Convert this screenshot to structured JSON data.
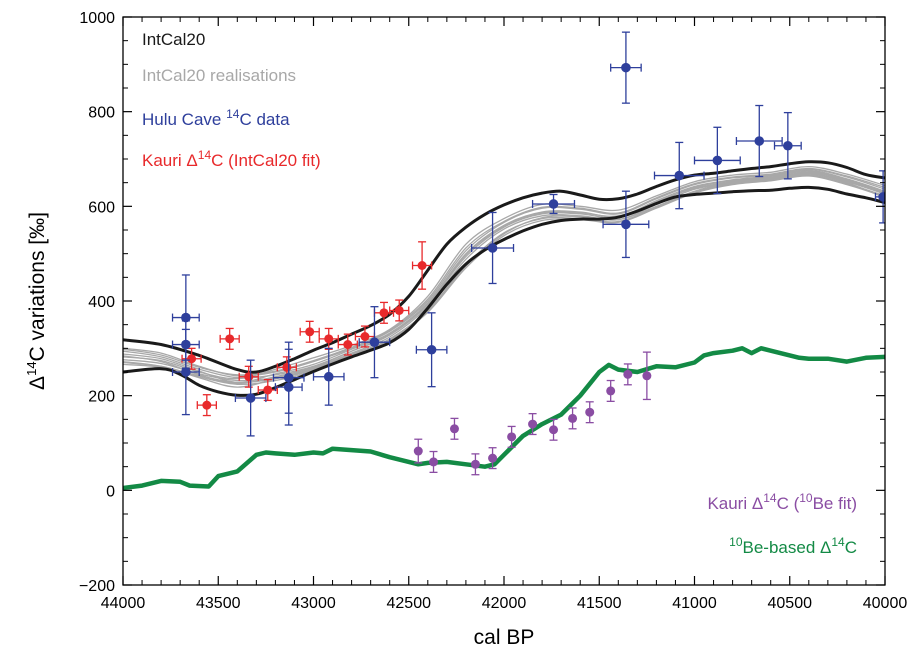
{
  "chart_data": {
    "type": "scatter",
    "x_axis": {
      "label": "cal BP",
      "range": [
        44000,
        40000
      ],
      "reversed": true,
      "ticks": [
        44000,
        43500,
        43000,
        42500,
        42000,
        41500,
        41000,
        40500,
        40000
      ],
      "tick_labels": [
        "44000",
        "43500",
        "43000",
        "42500",
        "42000",
        "41500",
        "41000",
        "40500",
        "40000"
      ]
    },
    "y_axis": {
      "label_prefix": "Δ",
      "label_sup": "14",
      "label_rest": "C variations [‰]",
      "range": [
        -200,
        1000
      ],
      "ticks": [
        -200,
        0,
        200,
        400,
        600,
        800,
        1000
      ],
      "tick_labels": [
        "−200",
        "0",
        "200",
        "400",
        "600",
        "800",
        "1000"
      ]
    },
    "grid": false,
    "legend_top": [
      {
        "key": "intcal20",
        "parts": [
          {
            "t": "IntCal20",
            "sup": false
          }
        ],
        "color": "#1a1a1a"
      },
      {
        "key": "realisations",
        "parts": [
          {
            "t": "IntCal20 realisations",
            "sup": false
          }
        ],
        "color": "#a8a8a8"
      },
      {
        "key": "hulu",
        "parts": [
          {
            "t": "Hulu Cave ",
            "sup": false
          },
          {
            "t": "14",
            "sup": true
          },
          {
            "t": "C data",
            "sup": false
          }
        ],
        "color": "#2e3f9c"
      },
      {
        "key": "kauri_intcal",
        "parts": [
          {
            "t": "Kauri Δ",
            "sup": false
          },
          {
            "t": "14",
            "sup": true
          },
          {
            "t": "C (IntCal20 fit)",
            "sup": false
          }
        ],
        "color": "#e8292b"
      }
    ],
    "legend_bottom": [
      {
        "key": "kauri_be",
        "parts": [
          {
            "t": "Kauri Δ",
            "sup": false
          },
          {
            "t": "14",
            "sup": true
          },
          {
            "t": "C (",
            "sup": false
          },
          {
            "t": "10",
            "sup": true
          },
          {
            "t": "Be fit)",
            "sup": false
          }
        ],
        "color": "#8a4da3"
      },
      {
        "key": "be_based",
        "parts": [
          {
            "t": "10",
            "sup": true
          },
          {
            "t": "Be-based Δ",
            "sup": false
          },
          {
            "t": "14",
            "sup": true
          },
          {
            "t": "C",
            "sup": false
          }
        ],
        "color": "#138a45"
      }
    ],
    "intcal20": {
      "color": "#1a1a1a",
      "upper": [
        [
          44000,
          318
        ],
        [
          43800,
          308
        ],
        [
          43600,
          285
        ],
        [
          43400,
          255
        ],
        [
          43300,
          250
        ],
        [
          43200,
          262
        ],
        [
          43100,
          278
        ],
        [
          43000,
          296
        ],
        [
          42900,
          312
        ],
        [
          42800,
          330
        ],
        [
          42700,
          348
        ],
        [
          42600,
          372
        ],
        [
          42500,
          410
        ],
        [
          42400,
          465
        ],
        [
          42300,
          520
        ],
        [
          42200,
          556
        ],
        [
          42100,
          583
        ],
        [
          42000,
          603
        ],
        [
          41900,
          618
        ],
        [
          41800,
          628
        ],
        [
          41700,
          632
        ],
        [
          41600,
          624
        ],
        [
          41500,
          615
        ],
        [
          41400,
          616
        ],
        [
          41300,
          626
        ],
        [
          41200,
          642
        ],
        [
          41100,
          656
        ],
        [
          41000,
          666
        ],
        [
          40900,
          670
        ],
        [
          40800,
          675
        ],
        [
          40700,
          680
        ],
        [
          40600,
          684
        ],
        [
          40500,
          690
        ],
        [
          40400,
          694
        ],
        [
          40300,
          692
        ],
        [
          40200,
          682
        ],
        [
          40100,
          667
        ],
        [
          40000,
          660
        ]
      ],
      "lower": [
        [
          44000,
          250
        ],
        [
          43800,
          257
        ],
        [
          43700,
          245
        ],
        [
          43600,
          222
        ],
        [
          43500,
          208
        ],
        [
          43400,
          201
        ],
        [
          43300,
          203
        ],
        [
          43200,
          217
        ],
        [
          43100,
          234
        ],
        [
          43000,
          251
        ],
        [
          42900,
          267
        ],
        [
          42800,
          282
        ],
        [
          42700,
          296
        ],
        [
          42600,
          312
        ],
        [
          42500,
          340
        ],
        [
          42400,
          385
        ],
        [
          42300,
          435
        ],
        [
          42200,
          478
        ],
        [
          42100,
          508
        ],
        [
          42000,
          530
        ],
        [
          41900,
          548
        ],
        [
          41800,
          562
        ],
        [
          41700,
          570
        ],
        [
          41600,
          573
        ],
        [
          41500,
          573
        ],
        [
          41400,
          577
        ],
        [
          41300,
          590
        ],
        [
          41200,
          606
        ],
        [
          41100,
          620
        ],
        [
          41000,
          625
        ],
        [
          40900,
          628
        ],
        [
          40800,
          631
        ],
        [
          40700,
          633
        ],
        [
          40600,
          634
        ],
        [
          40500,
          638
        ],
        [
          40400,
          640
        ],
        [
          40300,
          636
        ],
        [
          40200,
          626
        ],
        [
          40100,
          618
        ],
        [
          40000,
          608
        ]
      ]
    },
    "realisations": {
      "color": "#a8a8a8",
      "x": [
        44000,
        43800,
        43600,
        43400,
        43200,
        43000,
        42800,
        42600,
        42400,
        42200,
        42000,
        41800,
        41600,
        41400,
        41200,
        41000,
        40800,
        40600,
        40400,
        40200,
        40000
      ],
      "series": [
        [
          300,
          290,
          262,
          242,
          250,
          272,
          300,
          338,
          404,
          512,
          568,
          598,
          596,
          586,
          618,
          648,
          662,
          668,
          680,
          664,
          640
        ],
        [
          288,
          278,
          252,
          228,
          246,
          266,
          298,
          332,
          396,
          500,
          560,
          588,
          588,
          578,
          612,
          642,
          656,
          664,
          676,
          658,
          632
        ],
        [
          276,
          268,
          246,
          232,
          238,
          258,
          290,
          324,
          388,
          488,
          552,
          580,
          580,
          572,
          604,
          636,
          650,
          660,
          670,
          652,
          626
        ],
        [
          266,
          260,
          240,
          224,
          232,
          252,
          286,
          320,
          380,
          476,
          544,
          574,
          574,
          568,
          598,
          630,
          648,
          656,
          666,
          648,
          622
        ],
        [
          282,
          274,
          250,
          236,
          256,
          280,
          306,
          340,
          410,
          520,
          574,
          604,
          600,
          592,
          622,
          652,
          666,
          672,
          684,
          668,
          644
        ],
        [
          294,
          282,
          256,
          238,
          244,
          262,
          294,
          328,
          392,
          494,
          556,
          584,
          584,
          576,
          608,
          640,
          654,
          662,
          674,
          656,
          630
        ],
        [
          272,
          262,
          238,
          218,
          236,
          256,
          288,
          318,
          376,
          470,
          538,
          570,
          572,
          566,
          596,
          628,
          646,
          654,
          664,
          646,
          620
        ],
        [
          298,
          286,
          260,
          244,
          252,
          274,
          302,
          336,
          400,
          506,
          566,
          596,
          594,
          584,
          616,
          646,
          660,
          666,
          678,
          662,
          636
        ],
        [
          284,
          272,
          244,
          226,
          240,
          260,
          294,
          330,
          394,
          498,
          558,
          586,
          586,
          580,
          610,
          638,
          652,
          660,
          672,
          654,
          628
        ],
        [
          270,
          262,
          242,
          228,
          236,
          254,
          284,
          316,
          378,
          474,
          542,
          576,
          578,
          572,
          600,
          632,
          650,
          658,
          668,
          650,
          618
        ]
      ]
    },
    "hulu": {
      "color": "#2e3f9c",
      "points": [
        {
          "x": 43670,
          "y": 365,
          "xerr": 70,
          "yerr": 90
        },
        {
          "x": 43670,
          "y": 308,
          "xerr": 70,
          "yerr": 50
        },
        {
          "x": 43670,
          "y": 250,
          "xerr": 70,
          "yerr": 90
        },
        {
          "x": 43330,
          "y": 195,
          "xerr": 80,
          "yerr": 80
        },
        {
          "x": 43130,
          "y": 238,
          "xerr": 80,
          "yerr": 75
        },
        {
          "x": 43130,
          "y": 218,
          "xerr": 70,
          "yerr": 80
        },
        {
          "x": 42920,
          "y": 240,
          "xerr": 80,
          "yerr": 60
        },
        {
          "x": 42680,
          "y": 313,
          "xerr": 80,
          "yerr": 75
        },
        {
          "x": 42380,
          "y": 297,
          "xerr": 80,
          "yerr": 78
        },
        {
          "x": 42060,
          "y": 512,
          "xerr": 110,
          "yerr": 75
        },
        {
          "x": 41740,
          "y": 605,
          "xerr": 110,
          "yerr": 20
        },
        {
          "x": 41360,
          "y": 893,
          "xerr": 80,
          "yerr": 75
        },
        {
          "x": 41360,
          "y": 562,
          "xerr": 120,
          "yerr": 70
        },
        {
          "x": 41080,
          "y": 665,
          "xerr": 130,
          "yerr": 70
        },
        {
          "x": 40880,
          "y": 697,
          "xerr": 120,
          "yerr": 70
        },
        {
          "x": 40660,
          "y": 738,
          "xerr": 120,
          "yerr": 75
        },
        {
          "x": 40510,
          "y": 728,
          "xerr": 70,
          "yerr": 70
        },
        {
          "x": 40010,
          "y": 620,
          "xerr": 40,
          "yerr": 55
        }
      ]
    },
    "kauri_intcal": {
      "color": "#e8292b",
      "points": [
        {
          "x": 43640,
          "y": 278,
          "xerr": 50,
          "yerr": 22
        },
        {
          "x": 43440,
          "y": 320,
          "xerr": 50,
          "yerr": 22
        },
        {
          "x": 43560,
          "y": 180,
          "xerr": 50,
          "yerr": 22
        },
        {
          "x": 43340,
          "y": 240,
          "xerr": 50,
          "yerr": 22
        },
        {
          "x": 43240,
          "y": 212,
          "xerr": 50,
          "yerr": 22
        },
        {
          "x": 43140,
          "y": 260,
          "xerr": 50,
          "yerr": 22
        },
        {
          "x": 43020,
          "y": 335,
          "xerr": 50,
          "yerr": 22
        },
        {
          "x": 42920,
          "y": 320,
          "xerr": 50,
          "yerr": 22
        },
        {
          "x": 42820,
          "y": 308,
          "xerr": 50,
          "yerr": 22
        },
        {
          "x": 42730,
          "y": 325,
          "xerr": 50,
          "yerr": 22
        },
        {
          "x": 42630,
          "y": 375,
          "xerr": 50,
          "yerr": 22
        },
        {
          "x": 42550,
          "y": 380,
          "xerr": 50,
          "yerr": 22
        },
        {
          "x": 42430,
          "y": 475,
          "xerr": 50,
          "yerr": 50
        }
      ]
    },
    "kauri_be": {
      "color": "#8a4da3",
      "points": [
        {
          "x": 42450,
          "y": 83,
          "yerr": 25
        },
        {
          "x": 42370,
          "y": 60,
          "yerr": 22
        },
        {
          "x": 42260,
          "y": 130,
          "yerr": 22
        },
        {
          "x": 42150,
          "y": 55,
          "yerr": 22
        },
        {
          "x": 42060,
          "y": 68,
          "yerr": 22
        },
        {
          "x": 41960,
          "y": 113,
          "yerr": 22
        },
        {
          "x": 41850,
          "y": 140,
          "yerr": 22
        },
        {
          "x": 41740,
          "y": 128,
          "yerr": 22
        },
        {
          "x": 41640,
          "y": 152,
          "yerr": 22
        },
        {
          "x": 41550,
          "y": 165,
          "yerr": 22
        },
        {
          "x": 41440,
          "y": 210,
          "yerr": 22
        },
        {
          "x": 41350,
          "y": 245,
          "yerr": 22
        },
        {
          "x": 41250,
          "y": 242,
          "yerr": 50
        }
      ]
    },
    "be_based": {
      "color": "#138a45",
      "x": [
        44000,
        43900,
        43800,
        43700,
        43650,
        43550,
        43500,
        43400,
        43300,
        43250,
        43200,
        43100,
        43000,
        42950,
        42900,
        42800,
        42700,
        42600,
        42500,
        42450,
        42400,
        42300,
        42200,
        42100,
        42050,
        42000,
        41900,
        41800,
        41700,
        41650,
        41600,
        41500,
        41450,
        41400,
        41300,
        41200,
        41100,
        41000,
        40950,
        40900,
        40800,
        40750,
        40700,
        40650,
        40600,
        40500,
        40450,
        40400,
        40300,
        40200,
        40100,
        40000
      ],
      "y": [
        5,
        10,
        20,
        18,
        10,
        8,
        30,
        40,
        75,
        80,
        78,
        75,
        80,
        78,
        88,
        85,
        82,
        70,
        60,
        55,
        58,
        60,
        55,
        50,
        55,
        75,
        115,
        140,
        160,
        180,
        200,
        250,
        265,
        255,
        250,
        262,
        260,
        270,
        285,
        290,
        295,
        300,
        290,
        300,
        295,
        285,
        280,
        278,
        278,
        272,
        280,
        282
      ]
    }
  }
}
